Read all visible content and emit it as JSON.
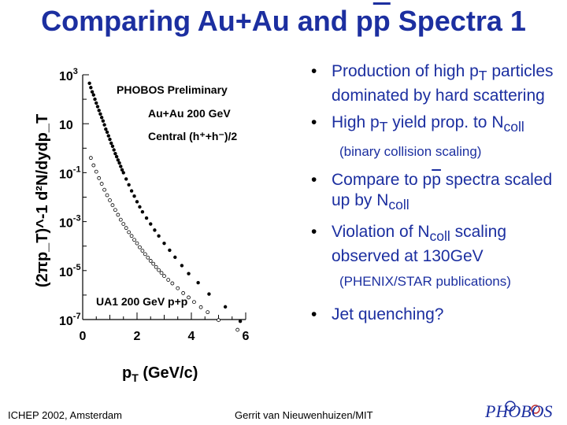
{
  "slide": {
    "title_pre": "Comparing Au+Au and p",
    "title_bar": "p",
    "title_post": " Spectra 1",
    "bullets": [
      {
        "pre": "Production of high p",
        "sub": "T",
        "post": " particles dominated by hard scattering"
      },
      {
        "pre": "High p",
        "sub": "T",
        "post": " yield prop. to N",
        "sub2": "coll"
      }
    ],
    "note1": "(binary collision scaling)",
    "bullet3": {
      "pre": "Compare to p",
      "bar": "p",
      "post": " spectra scaled up by  N",
      "sub": "coll"
    },
    "bullet4": {
      "pre": "Violation of N",
      "sub": "coll",
      "post": " scaling observed at 130GeV"
    },
    "note2": "(PHENIX/STAR publications)",
    "bullet5": "Jet quenching?",
    "footer_left": "ICHEP 2002, Amsterdam",
    "footer_mid": "Gerrit van Nieuwenhuizen/MIT",
    "logo_text": "PHOBOS",
    "colors": {
      "title": "#1c2fa0",
      "text": "#1c2fa0"
    }
  },
  "chart_data": {
    "type": "scatter",
    "ylog": true,
    "xlim": [
      0,
      6
    ],
    "ylim_log": [
      -7,
      3
    ],
    "x_ticks": [
      "0",
      "2",
      "4",
      "6"
    ],
    "y_ticks": [
      {
        "base": "10",
        "exp": "3"
      },
      {
        "base": "10",
        "exp": ""
      },
      {
        "base": "10",
        "exp": "-1"
      },
      {
        "base": "10",
        "exp": "-3"
      },
      {
        "base": "10",
        "exp": "-5"
      },
      {
        "base": "10",
        "exp": "-7"
      }
    ],
    "y_tick_exps": [
      3,
      1,
      -1,
      -3,
      -5,
      -7
    ],
    "xlabel_pre": "p",
    "xlabel_sub": "T",
    "xlabel_post": " (GeV/c)",
    "ylabel": "(2πp_T)^-1 d²N/dydp_T",
    "annotations": [
      "PHOBOS Preliminary",
      "Au+Au 200 GeV",
      "Central (h⁺+h⁻)/2",
      "UA1 200 GeV p+p"
    ],
    "series": [
      {
        "name": "Au+Au 200 GeV",
        "marker": "filled",
        "points": [
          [
            0.25,
            450
          ],
          [
            0.3,
            300
          ],
          [
            0.35,
            200
          ],
          [
            0.4,
            150
          ],
          [
            0.45,
            100
          ],
          [
            0.5,
            70
          ],
          [
            0.55,
            50
          ],
          [
            0.6,
            35
          ],
          [
            0.65,
            25
          ],
          [
            0.7,
            18
          ],
          [
            0.75,
            13
          ],
          [
            0.8,
            9
          ],
          [
            0.85,
            6
          ],
          [
            0.9,
            4.5
          ],
          [
            0.95,
            3.2
          ],
          [
            1.0,
            2.3
          ],
          [
            1.05,
            1.6
          ],
          [
            1.1,
            1.2
          ],
          [
            1.15,
            0.85
          ],
          [
            1.2,
            0.6
          ],
          [
            1.25,
            0.45
          ],
          [
            1.3,
            0.33
          ],
          [
            1.35,
            0.25
          ],
          [
            1.4,
            0.18
          ],
          [
            1.45,
            0.13
          ],
          [
            1.5,
            0.1
          ],
          [
            1.6,
            0.055
          ],
          [
            1.7,
            0.032
          ],
          [
            1.8,
            0.018
          ],
          [
            1.9,
            0.011
          ],
          [
            2.0,
            0.0065
          ],
          [
            2.1,
            0.004
          ],
          [
            2.2,
            0.0025
          ],
          [
            2.35,
            0.0014
          ],
          [
            2.5,
            0.0008
          ],
          [
            2.65,
            0.00045
          ],
          [
            2.8,
            0.00026
          ],
          [
            3.0,
            0.00013
          ],
          [
            3.2,
            6.8e-05
          ],
          [
            3.4,
            3.5e-05
          ],
          [
            3.65,
            1.6e-05
          ],
          [
            3.9,
            7.5e-06
          ],
          [
            4.25,
            3.2e-06
          ],
          [
            4.65,
            1.1e-06
          ],
          [
            5.25,
            3.3e-07
          ],
          [
            5.8,
            8.5e-08
          ]
        ]
      },
      {
        "name": "UA1 200 GeV p+p",
        "marker": "open",
        "points": [
          [
            0.3,
            0.4
          ],
          [
            0.4,
            0.2
          ],
          [
            0.5,
            0.11
          ],
          [
            0.6,
            0.06
          ],
          [
            0.7,
            0.035
          ],
          [
            0.8,
            0.02
          ],
          [
            0.9,
            0.012
          ],
          [
            1.0,
            0.0075
          ],
          [
            1.1,
            0.0047
          ],
          [
            1.2,
            0.003
          ],
          [
            1.3,
            0.0019
          ],
          [
            1.4,
            0.0012
          ],
          [
            1.5,
            0.0008
          ],
          [
            1.6,
            0.00055
          ],
          [
            1.7,
            0.00037
          ],
          [
            1.8,
            0.00026
          ],
          [
            1.9,
            0.00018
          ],
          [
            2.0,
            0.00013
          ],
          [
            2.1,
            9e-05
          ],
          [
            2.2,
            6.5e-05
          ],
          [
            2.3,
            4.7e-05
          ],
          [
            2.4,
            3.4e-05
          ],
          [
            2.5,
            2.5e-05
          ],
          [
            2.6,
            1.9e-05
          ],
          [
            2.7,
            1.4e-05
          ],
          [
            2.8,
            1.05e-05
          ],
          [
            2.9,
            8e-06
          ],
          [
            3.0,
            6e-06
          ],
          [
            3.15,
            4.2e-06
          ],
          [
            3.3,
            3e-06
          ],
          [
            3.5,
            1.9e-06
          ],
          [
            3.7,
            1.2e-06
          ],
          [
            3.9,
            8e-07
          ],
          [
            4.1,
            5.2e-07
          ],
          [
            4.35,
            3.2e-07
          ],
          [
            4.6,
            2e-07
          ],
          [
            5.0,
            9.5e-08
          ],
          [
            5.7,
            3.8e-08
          ]
        ]
      }
    ]
  }
}
